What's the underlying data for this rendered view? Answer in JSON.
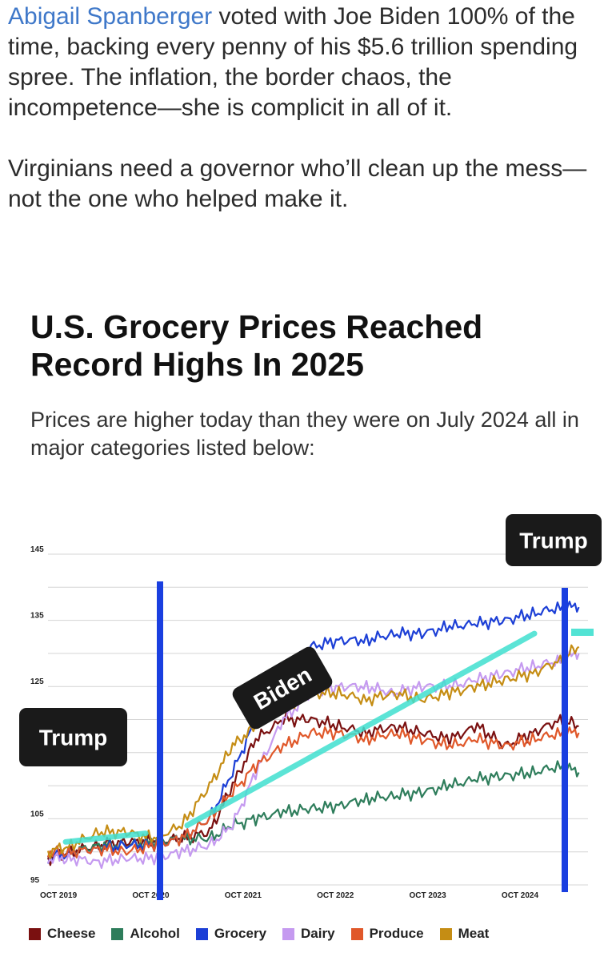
{
  "post": {
    "name": "Abigail Spanberger",
    "line1_rest": " voted with Joe Biden 100% of the time, backing every penny of his $5.6 trillion spending spree. The inflation, the border chaos, the incompetence—she is complicit in all of it.",
    "paragraph2": "Virginians need a governor who’ll clean up the mess—not the one who helped make it."
  },
  "headline": "U.S. Grocery Prices Reached Record Highs In 2025",
  "subhead": "Prices are higher today than they were on July 2024 all in major categories listed below:",
  "annotations": {
    "trump_left": "Trump",
    "trump_right": "Trump",
    "biden": "Biden",
    "trend_color": "#40e0d0",
    "marker_color": "#1a3fe0"
  },
  "chart_data": {
    "type": "line",
    "y_ticks": [
      "145",
      "135",
      "125",
      "105",
      "95"
    ],
    "x_ticks": [
      "OCT 2019",
      "OCT 2020",
      "OCT 2021",
      "OCT 2022",
      "OCT 2023",
      "OCT 2024"
    ],
    "ylim": [
      95,
      145
    ],
    "xlim": [
      2019.75,
      2025.6
    ],
    "grid": true,
    "legend_position": "bottom",
    "series": [
      {
        "name": "Cheese",
        "color": "#7a1010",
        "x": [
          2019.75,
          2020.0,
          2020.3,
          2020.6,
          2020.9,
          2021.2,
          2021.5,
          2021.75,
          2022.0,
          2022.3,
          2022.6,
          2022.9,
          2023.2,
          2023.5,
          2023.8,
          2024.1,
          2024.4,
          2024.7,
          2025.0,
          2025.3,
          2025.5
        ],
        "y": [
          99,
          100,
          101,
          101.5,
          101.5,
          102,
          103,
          110,
          117,
          120,
          120,
          119,
          118,
          119,
          118,
          117,
          119,
          116,
          118,
          120,
          119
        ]
      },
      {
        "name": "Alcohol",
        "color": "#2e7d5b",
        "x": [
          2019.75,
          2020.0,
          2020.3,
          2020.6,
          2020.9,
          2021.2,
          2021.5,
          2021.75,
          2022.0,
          2022.3,
          2022.6,
          2022.9,
          2023.2,
          2023.5,
          2023.8,
          2024.1,
          2024.4,
          2024.7,
          2025.0,
          2025.3,
          2025.5
        ],
        "y": [
          100,
          100,
          101,
          101,
          101.5,
          102,
          102,
          104,
          105,
          106,
          106.5,
          107,
          108,
          108.5,
          109,
          110,
          111,
          111.5,
          112,
          113,
          112
        ]
      },
      {
        "name": "Grocery",
        "color": "#1c3fd6",
        "x": [
          2019.75,
          2020.0,
          2020.3,
          2020.6,
          2020.9,
          2021.2,
          2021.5,
          2021.75,
          2022.0,
          2022.3,
          2022.6,
          2022.9,
          2023.2,
          2023.5,
          2023.8,
          2024.1,
          2024.4,
          2024.7,
          2025.0,
          2025.3,
          2025.5
        ],
        "y": [
          99,
          100,
          100.5,
          101,
          101,
          102,
          105,
          112,
          120,
          127,
          131,
          132,
          132,
          133,
          133,
          134,
          134.5,
          135,
          136,
          137,
          137
        ]
      },
      {
        "name": "Dairy",
        "color": "#c59af0",
        "x": [
          2019.75,
          2020.0,
          2020.3,
          2020.6,
          2020.9,
          2021.2,
          2021.5,
          2021.75,
          2022.0,
          2022.3,
          2022.6,
          2022.9,
          2023.2,
          2023.5,
          2023.8,
          2024.1,
          2024.4,
          2024.7,
          2025.0,
          2025.3,
          2025.5
        ],
        "y": [
          99,
          99,
          98.5,
          99,
          99,
          100,
          101,
          104,
          112,
          120,
          124,
          125,
          125,
          124,
          125,
          125,
          126,
          127,
          128,
          129,
          130
        ]
      },
      {
        "name": "Produce",
        "color": "#e0582a",
        "x": [
          2019.75,
          2020.0,
          2020.3,
          2020.6,
          2020.9,
          2021.2,
          2021.5,
          2021.75,
          2022.0,
          2022.3,
          2022.6,
          2022.9,
          2023.2,
          2023.5,
          2023.8,
          2024.1,
          2024.4,
          2024.7,
          2025.0,
          2025.3,
          2025.5
        ],
        "y": [
          100,
          100,
          100.5,
          100,
          101,
          102,
          105,
          109,
          113,
          116,
          118,
          118,
          117,
          118,
          117,
          116,
          117,
          116,
          117,
          118,
          118
        ]
      },
      {
        "name": "Meat",
        "color": "#c58d14",
        "x": [
          2019.75,
          2020.0,
          2020.3,
          2020.6,
          2020.9,
          2021.2,
          2021.5,
          2021.75,
          2022.0,
          2022.3,
          2022.6,
          2022.9,
          2023.2,
          2023.5,
          2023.8,
          2024.1,
          2024.4,
          2024.7,
          2025.0,
          2025.3,
          2025.5
        ],
        "y": [
          100,
          101,
          103,
          103,
          102,
          104,
          110,
          116,
          119,
          122,
          124,
          124,
          123,
          124,
          123,
          124,
          125,
          126,
          127,
          129,
          131
        ]
      }
    ]
  }
}
